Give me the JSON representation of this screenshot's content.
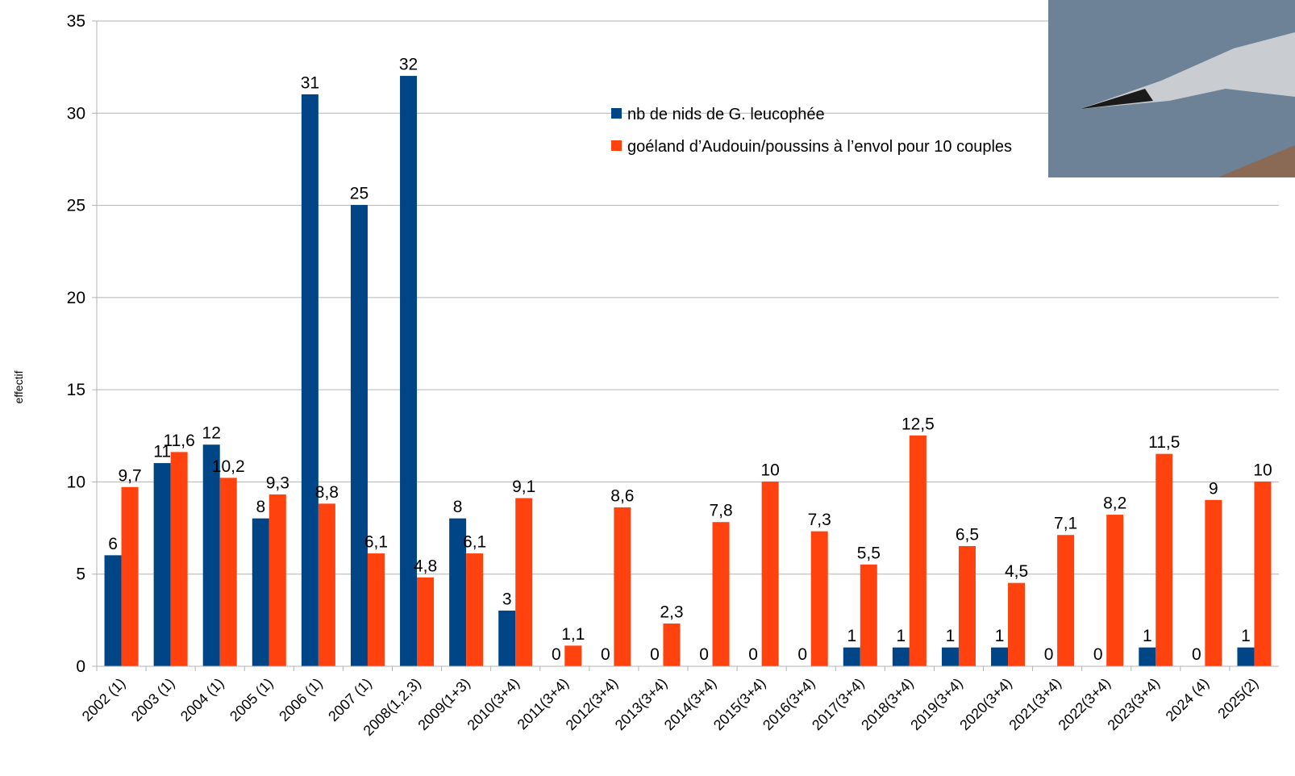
{
  "chart_data": {
    "type": "bar",
    "y_label": "effectif",
    "categories": [
      "2002 (1)",
      "2003 (1)",
      "2004 (1)",
      "2005 (1)",
      "2006 (1)",
      "2007 (1)",
      "2008(1,2,3)",
      "2009(1+3)",
      "2010(3+4)",
      "2011(3+4)",
      "2012(3+4)",
      "2013(3+4)",
      "2014(3+4)",
      "2015(3+4)",
      "2016(3+4)",
      "2017(3+4)",
      "2018(3+4)",
      "2019(3+4)",
      "2020(3+4)",
      "2021(3+4)",
      "2022(3+4)",
      "2023(3+4)",
      "2024 (4)",
      "2025(2)"
    ],
    "series": [
      {
        "name": "nb de nids de G. leucophée",
        "color": "#004586",
        "values": [
          6,
          11,
          12,
          8,
          31,
          25,
          32,
          8,
          3,
          0,
          0,
          0,
          0,
          0,
          0,
          1,
          1,
          1,
          1,
          0,
          0,
          1,
          0,
          1
        ]
      },
      {
        "name": "goéland d’Audouin/poussins à l’envol  pour 10 couples",
        "color": "#ff420e",
        "values": [
          9.7,
          11.6,
          10.2,
          9.3,
          8.8,
          6.1,
          4.8,
          6.1,
          9.1,
          1.1,
          8.6,
          2.3,
          7.8,
          10,
          7.3,
          5.5,
          12.5,
          6.5,
          4.5,
          7.1,
          8.2,
          11.5,
          9,
          10
        ],
        "value_labels": [
          "9,7",
          "11,6",
          "10,2",
          "9,3",
          "8,8",
          "6,1",
          "4,8",
          "6,1",
          "9,1",
          "1,1",
          "8,6",
          "2,3",
          "7,8",
          "10",
          "7,3",
          "5,5",
          "12,5",
          "6,5",
          "4,5",
          "7,1",
          "8,2",
          "11,5",
          "9",
          "10"
        ]
      }
    ],
    "ylim": [
      0,
      35
    ],
    "yticks": [
      0,
      5,
      10,
      15,
      20,
      25,
      30,
      35
    ],
    "grid": true
  }
}
